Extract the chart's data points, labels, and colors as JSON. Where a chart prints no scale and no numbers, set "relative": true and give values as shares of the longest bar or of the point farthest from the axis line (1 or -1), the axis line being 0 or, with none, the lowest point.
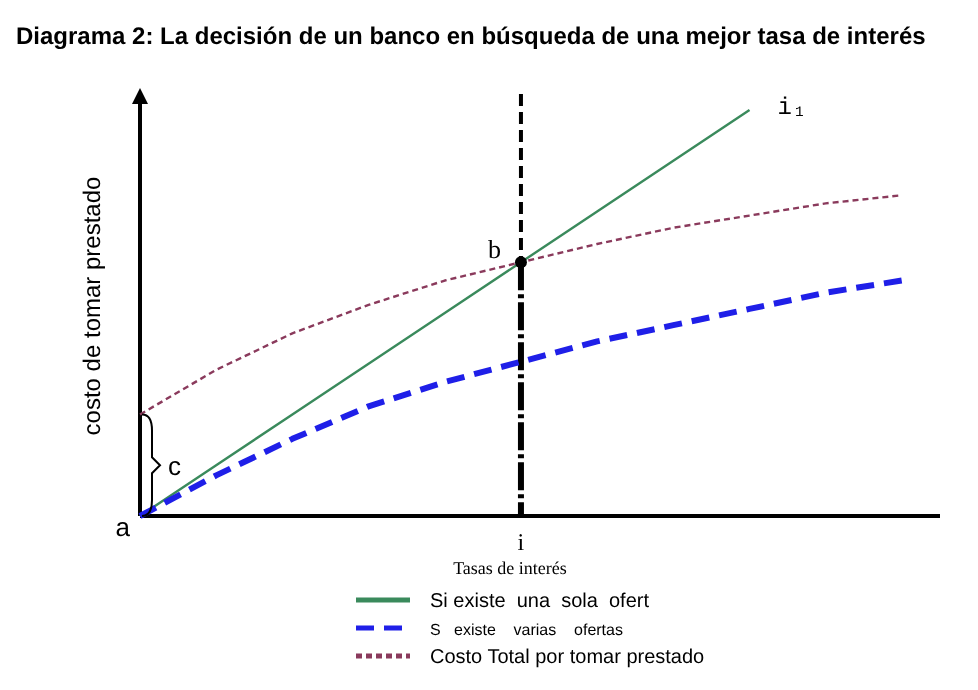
{
  "chart_data": {
    "type": "line",
    "title": "Diagrama 2: La decisión de un banco en búsqueda de una mejor tasa de interés",
    "xlabel": "Tasas de interés",
    "ylabel": "costo de tomar prestado",
    "relative": true,
    "legend": "bottom",
    "marker": "none",
    "categories": [
      null,
      null,
      null,
      null,
      null,
      null,
      null,
      null,
      null,
      null,
      null
    ],
    "series": [
      {
        "name": "Si existe  una  sola  ofert",
        "color": "#3a8a5c",
        "line_style": "solid",
        "values": [
          0,
          0.125,
          0.25,
          0.375,
          0.5,
          0.625,
          0.75,
          0.875,
          1,
          null,
          null
        ]
      },
      {
        "name": "S   existe    varias    ofertas",
        "color": "#1f1fe8",
        "line_style": "dashed",
        "values": [
          0,
          0.1,
          0.19,
          0.27,
          0.33,
          0.38,
          0.43,
          0.47,
          0.51,
          0.55,
          0.58
        ]
      },
      {
        "name": "Costo Total por tomar prestado",
        "color": "#8a3a5c",
        "line_style": "dotted",
        "values": [
          0.25,
          0.36,
          0.45,
          0.52,
          0.58,
          0.625,
          0.67,
          0.71,
          0.74,
          0.77,
          0.79
        ]
      }
    ],
    "annotations": [
      "a",
      "b",
      "c",
      "i₁",
      "i"
    ]
  }
}
